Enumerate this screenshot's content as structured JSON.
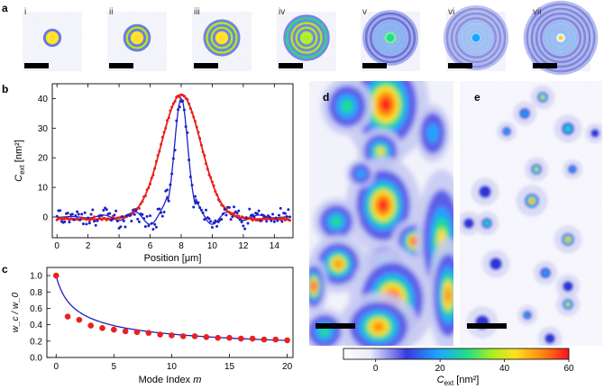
{
  "panel_labels": {
    "a": "a",
    "b": "b",
    "c": "c",
    "d": "d",
    "e": "e"
  },
  "panel_a": {
    "roman": [
      "i",
      "ii",
      "iii",
      "iv",
      "v",
      "vi",
      "vii"
    ],
    "ring_counts": [
      1,
      2,
      3,
      4,
      5,
      6,
      7
    ]
  },
  "colors": {
    "red_series": "#e8201e",
    "blue_series": "#1a22c8",
    "image_bg": "#f4f4fb",
    "scalebar": "#000000"
  },
  "chart_data": [
    {
      "panel": "b",
      "type": "scatter",
      "xlabel": "Position [μm]",
      "ylabel_main": "C",
      "ylabel_sub": "ext",
      "ylabel_unit": " [nm²]",
      "xlim": [
        -0.3,
        15.2
      ],
      "ylim": [
        -7,
        45
      ],
      "xticks": [
        0,
        2,
        4,
        6,
        8,
        10,
        12,
        14
      ],
      "yticks": [
        0,
        10,
        20,
        30,
        40
      ],
      "series": [
        {
          "name": "red",
          "peak": 42,
          "center": 8.0,
          "fwhm": 3.0
        },
        {
          "name": "blue",
          "peak": 40,
          "center": 8.0,
          "fwhm": 1.0,
          "noise_level": 2
        }
      ]
    },
    {
      "panel": "c",
      "type": "scatter",
      "xlabel_main": "Mode Index ",
      "xlabel_var": "m",
      "ylabel": "w_c / w_0",
      "xlim": [
        -0.8,
        20.5
      ],
      "ylim": [
        0,
        1.1
      ],
      "xticks": [
        0,
        5,
        10,
        15,
        20
      ],
      "yticks": [
        "0.0",
        "0.2",
        "0.4",
        "0.6",
        "0.8",
        "1.0"
      ],
      "points_x": [
        0,
        1,
        2,
        3,
        4,
        5,
        6,
        7,
        8,
        9,
        10,
        11,
        12,
        13,
        14,
        15,
        16,
        17,
        18,
        19,
        20
      ],
      "points_y": [
        1.0,
        0.5,
        0.46,
        0.39,
        0.36,
        0.34,
        0.32,
        0.31,
        0.3,
        0.28,
        0.27,
        0.26,
        0.26,
        0.25,
        0.24,
        0.24,
        0.23,
        0.23,
        0.22,
        0.22,
        0.21
      ],
      "curve": "1/sqrt(2m+1) power law, from 1.0 at m=0 to 0.21 at m=20"
    }
  ],
  "colorbar": {
    "ticks": [
      "0",
      "20",
      "40",
      "60"
    ],
    "label_main": "C",
    "label_sub": "ext",
    "label_unit": " [nm²]",
    "range": [
      -10,
      60
    ]
  }
}
